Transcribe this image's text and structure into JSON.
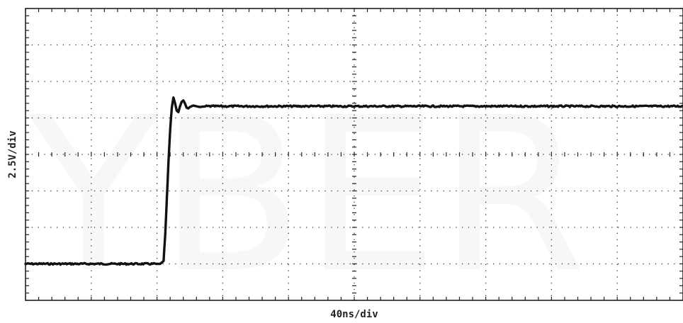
{
  "chart_data": {
    "type": "line",
    "title": "",
    "xlabel": "40ns/div",
    "ylabel": "2.5V/div",
    "x_unit": "ns",
    "y_unit": "V",
    "x_divisions": 10,
    "y_divisions": 8,
    "xlim": [
      0,
      400
    ],
    "ylim": [
      -10,
      10
    ],
    "grid": true,
    "legend": "none",
    "series": [
      {
        "color": "#111111",
        "points": [
          [
            0,
            -7.5
          ],
          [
            20,
            -7.5
          ],
          [
            40,
            -7.5
          ],
          [
            60,
            -7.5
          ],
          [
            80,
            -7.5
          ],
          [
            82,
            -7.5
          ],
          [
            84,
            -7.3
          ],
          [
            85,
            -5.5
          ],
          [
            86,
            -3.0
          ],
          [
            87,
            -0.5
          ],
          [
            88,
            1.7
          ],
          [
            89,
            3.2
          ],
          [
            90,
            3.9
          ],
          [
            91,
            3.5
          ],
          [
            92,
            3.0
          ],
          [
            93,
            2.9
          ],
          [
            94,
            3.3
          ],
          [
            95,
            3.6
          ],
          [
            96,
            3.7
          ],
          [
            97,
            3.5
          ],
          [
            98,
            3.2
          ],
          [
            99,
            3.15
          ],
          [
            100,
            3.25
          ],
          [
            102,
            3.35
          ],
          [
            104,
            3.3
          ],
          [
            106,
            3.25
          ],
          [
            110,
            3.3
          ],
          [
            130,
            3.3
          ],
          [
            160,
            3.3
          ],
          [
            200,
            3.3
          ],
          [
            250,
            3.3
          ],
          [
            300,
            3.3
          ],
          [
            350,
            3.3
          ],
          [
            400,
            3.3
          ]
        ]
      }
    ]
  },
  "colors": {
    "trace": "#111111",
    "grid": "#333333",
    "frame": "#222222",
    "background": "#ffffff",
    "watermark": "#d8d8d8"
  }
}
